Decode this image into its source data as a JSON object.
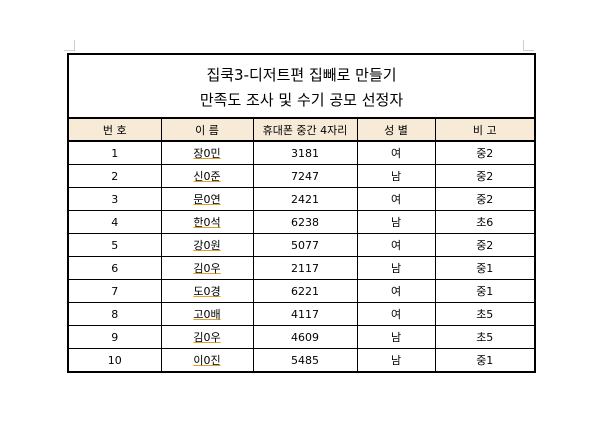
{
  "document": {
    "title_line1": "집쿡3-디저트편 집빼로 만들기",
    "title_line2": "만족도 조사 및 수기 공모 선정자"
  },
  "table": {
    "headers": [
      "번 호",
      "이 름",
      "휴대폰 중간 4자리",
      "성 별",
      "비 고"
    ],
    "rows": [
      {
        "no": "1",
        "name": "장0민",
        "phone": "3181",
        "gender": "여",
        "note": "중2"
      },
      {
        "no": "2",
        "name": "신0준",
        "phone": "7247",
        "gender": "남",
        "note": "중2"
      },
      {
        "no": "3",
        "name": "문0연",
        "phone": "2421",
        "gender": "여",
        "note": "중2"
      },
      {
        "no": "4",
        "name": "한0석",
        "phone": "6238",
        "gender": "남",
        "note": "초6"
      },
      {
        "no": "5",
        "name": "강0원",
        "phone": "5077",
        "gender": "여",
        "note": "중2"
      },
      {
        "no": "6",
        "name": "김0우",
        "phone": "2117",
        "gender": "남",
        "note": "중1"
      },
      {
        "no": "7",
        "name": "도0경",
        "phone": "6221",
        "gender": "여",
        "note": "중1"
      },
      {
        "no": "8",
        "name": "고0배",
        "phone": "4117",
        "gender": "여",
        "note": "초5"
      },
      {
        "no": "9",
        "name": "김0우",
        "phone": "4609",
        "gender": "남",
        "note": "초5"
      },
      {
        "no": "10",
        "name": "이0진",
        "phone": "5485",
        "gender": "남",
        "note": "중1"
      }
    ]
  },
  "colors": {
    "header_background": "#f7ebd8"
  }
}
